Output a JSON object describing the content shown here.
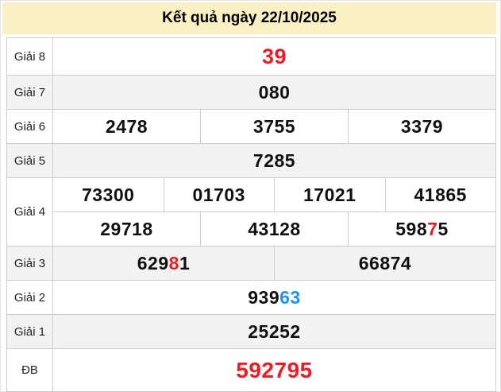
{
  "header": {
    "title": "Kết quả ngày 22/10/2025"
  },
  "colors": {
    "red": "#ed1c24",
    "blue": "#1e90ff",
    "black": "#101010",
    "header_bg": "#faf0c3",
    "zebra_bg": "#f2f2f2",
    "border": "#cccccc"
  },
  "table": {
    "rows": [
      {
        "id": "giai-8",
        "label": "Giải 8",
        "shaded": false,
        "size": "lg",
        "lines": [
          [
            [
              {
                "text": "39",
                "color": "red"
              }
            ]
          ]
        ]
      },
      {
        "id": "giai-7",
        "label": "Giải 7",
        "shaded": true,
        "lines": [
          [
            [
              {
                "text": "080"
              }
            ]
          ]
        ]
      },
      {
        "id": "giai-6",
        "label": "Giải 6",
        "shaded": false,
        "lines": [
          [
            [
              {
                "text": "2478"
              }
            ],
            [
              {
                "text": "3755"
              }
            ],
            [
              {
                "text": "3379"
              }
            ]
          ]
        ]
      },
      {
        "id": "giai-5",
        "label": "Giải 5",
        "shaded": true,
        "lines": [
          [
            [
              {
                "text": "7285"
              }
            ]
          ]
        ]
      },
      {
        "id": "giai-4",
        "label": "Giải 4",
        "shaded": false,
        "lines": [
          [
            [
              {
                "text": "73300"
              }
            ],
            [
              {
                "text": "01703"
              }
            ],
            [
              {
                "text": "17021"
              }
            ],
            [
              {
                "text": "41865"
              }
            ]
          ],
          [
            [
              {
                "text": "29718"
              }
            ],
            [
              {
                "text": "43128"
              }
            ],
            [
              {
                "text": "598"
              },
              {
                "text": "7",
                "color": "red"
              },
              {
                "text": "5"
              }
            ]
          ]
        ]
      },
      {
        "id": "giai-3",
        "label": "Giải 3",
        "shaded": true,
        "lines": [
          [
            [
              {
                "text": "629"
              },
              {
                "text": "8",
                "color": "red"
              },
              {
                "text": "1"
              }
            ],
            [
              {
                "text": "66874"
              }
            ]
          ]
        ]
      },
      {
        "id": "giai-2",
        "label": "Giải 2",
        "shaded": false,
        "lines": [
          [
            [
              {
                "text": "939"
              },
              {
                "text": "63",
                "color": "blue"
              }
            ]
          ]
        ]
      },
      {
        "id": "giai-1",
        "label": "Giải 1",
        "shaded": true,
        "lines": [
          [
            [
              {
                "text": "25252"
              }
            ]
          ]
        ]
      },
      {
        "id": "db",
        "label": "ĐB",
        "shaded": false,
        "size": "xl",
        "lines": [
          [
            [
              {
                "text": "592795",
                "color": "red"
              }
            ]
          ]
        ]
      }
    ]
  }
}
